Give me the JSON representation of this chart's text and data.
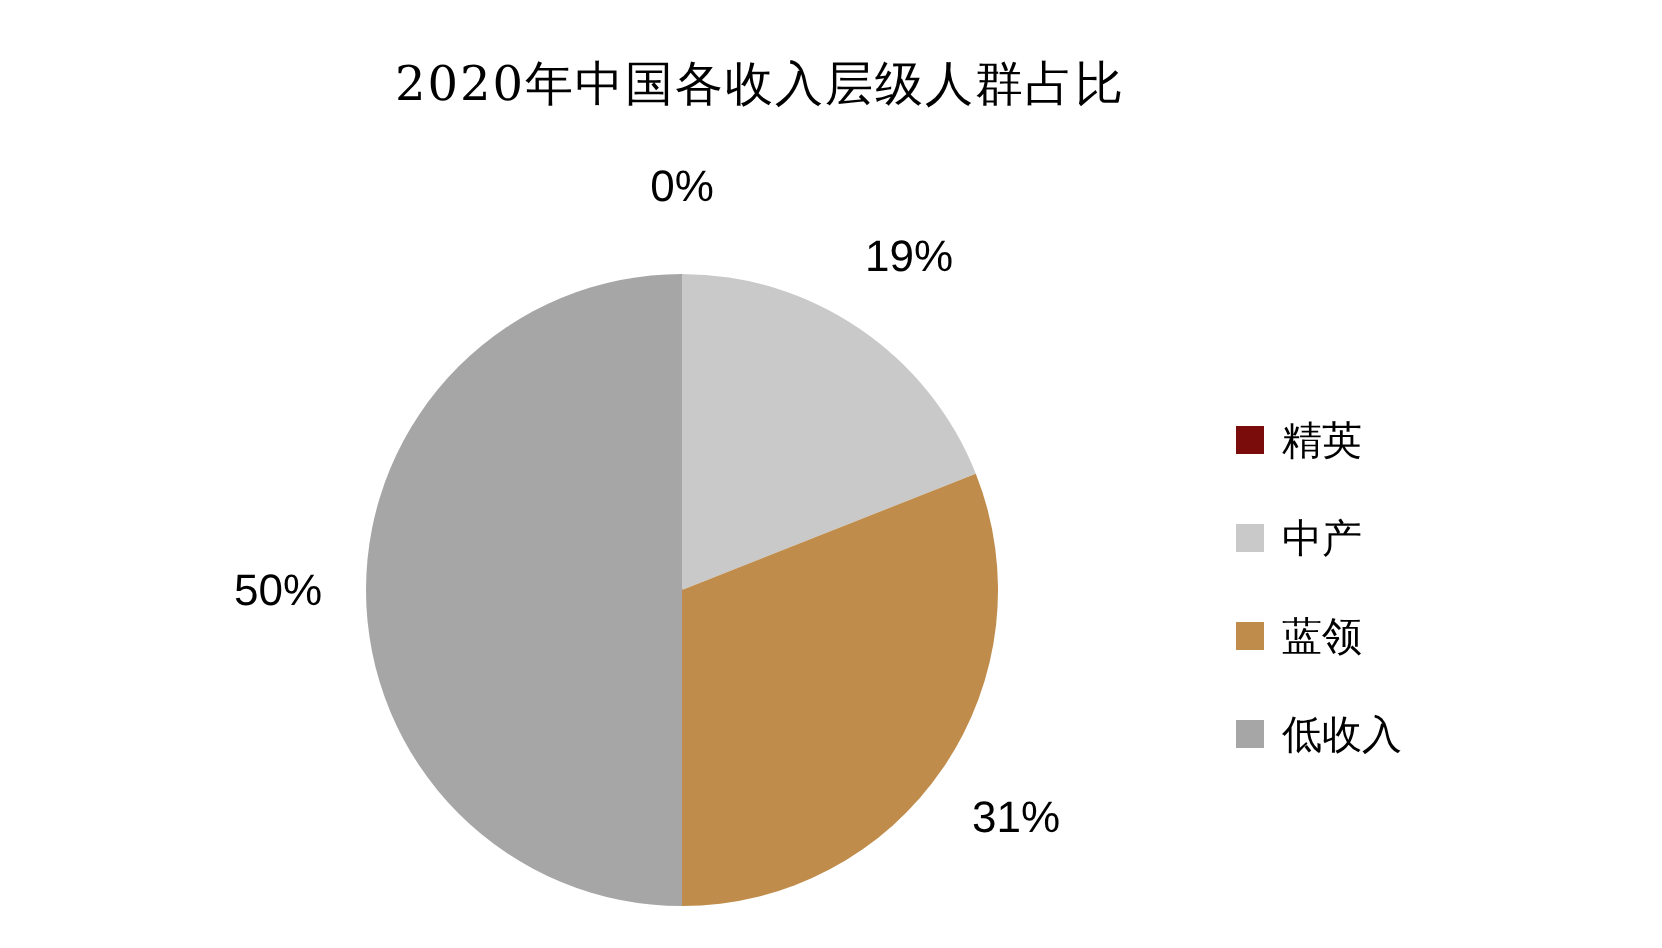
{
  "chart_data": {
    "type": "pie",
    "title": "2020年中国各收入层级人群占比",
    "categories": [
      "精英",
      "中产",
      "蓝领",
      "低收入"
    ],
    "values": [
      0,
      19,
      31,
      50
    ],
    "colors": [
      "#7b0c0c",
      "#c9c9c9",
      "#bf8c4b",
      "#a6a6a6"
    ],
    "value_labels": [
      "0%",
      "19%",
      "31%",
      "50%"
    ],
    "legend": "right"
  }
}
